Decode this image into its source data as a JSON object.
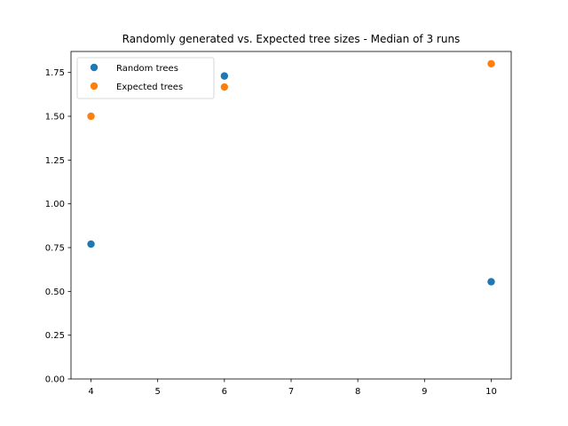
{
  "chart_data": {
    "type": "scatter",
    "title": "Randomly generated vs. Expected tree sizes - Median of 3 runs",
    "xlabel": "",
    "ylabel": "",
    "xlim": [
      3.7,
      10.3
    ],
    "ylim": [
      0,
      1.87
    ],
    "x_ticks": [
      "4",
      "5",
      "6",
      "7",
      "8",
      "9",
      "10"
    ],
    "y_ticks": [
      "0.00",
      "0.25",
      "0.50",
      "0.75",
      "1.00",
      "1.25",
      "1.50",
      "1.75"
    ],
    "grid": false,
    "legend_position": "top-left",
    "series": [
      {
        "name": "Random trees",
        "color": "#1f77b4",
        "points": [
          {
            "x": 4,
            "y": 0.77
          },
          {
            "x": 6,
            "y": 1.73
          },
          {
            "x": 10,
            "y": 0.555
          }
        ]
      },
      {
        "name": "Expected trees",
        "color": "#ff7f0e",
        "points": [
          {
            "x": 4,
            "y": 1.5
          },
          {
            "x": 6,
            "y": 1.667
          },
          {
            "x": 10,
            "y": 1.8
          }
        ]
      }
    ]
  }
}
